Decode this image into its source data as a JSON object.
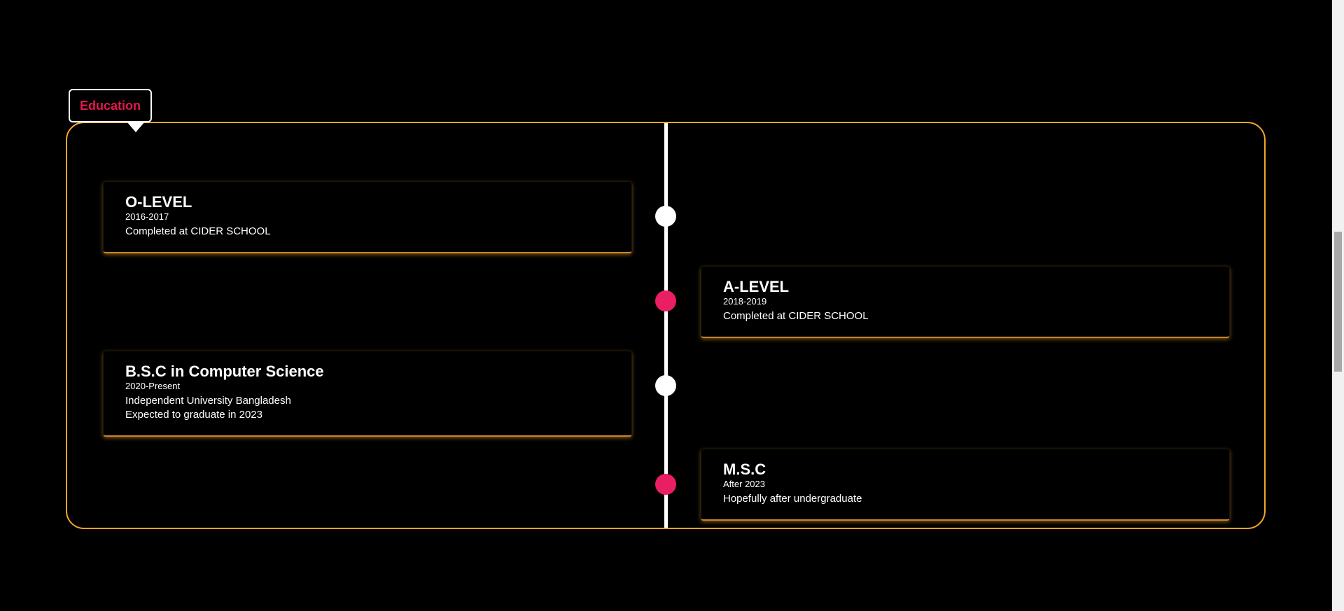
{
  "section": {
    "title": "Education"
  },
  "colors": {
    "accent": "#e3174f",
    "frame": "#f4a52b",
    "dot_white": "#ffffff",
    "dot_pink": "#e91e63"
  },
  "timeline": [
    {
      "title": "O-LEVEL",
      "years": "2016-2017",
      "lines": [
        "Completed at CIDER SCHOOL"
      ],
      "side": "left",
      "dot": "white"
    },
    {
      "title": "A-LEVEL",
      "years": "2018-2019",
      "lines": [
        "Completed at CIDER SCHOOL"
      ],
      "side": "right",
      "dot": "pink"
    },
    {
      "title": "B.S.C in Computer Science",
      "years": "2020-Present",
      "lines": [
        "Independent University Bangladesh",
        "Expected to graduate in 2023"
      ],
      "side": "left",
      "dot": "white"
    },
    {
      "title": "M.S.C",
      "years": "After 2023",
      "lines": [
        "Hopefully after undergraduate"
      ],
      "side": "right",
      "dot": "pink"
    }
  ]
}
